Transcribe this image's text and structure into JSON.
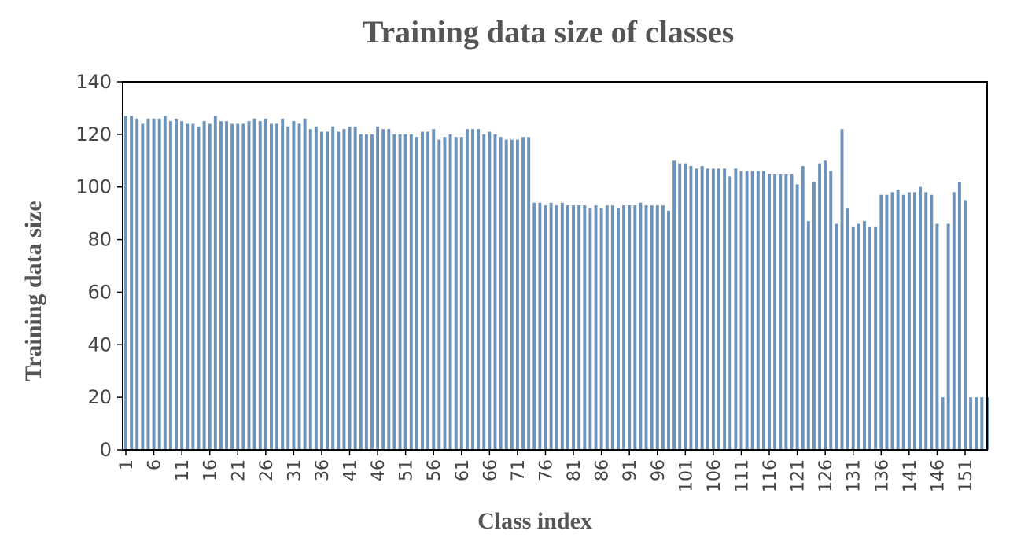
{
  "chart_data": {
    "type": "bar",
    "title": "Training data size of classes",
    "xlabel": "Class index",
    "ylabel": "Training data size",
    "ylim": [
      0,
      140
    ],
    "yticks": [
      0,
      20,
      40,
      60,
      80,
      100,
      120,
      140
    ],
    "xtick_labels": [
      "1",
      "6",
      "11",
      "16",
      "21",
      "26",
      "31",
      "36",
      "41",
      "46",
      "51",
      "56",
      "61",
      "66",
      "71",
      "76",
      "81",
      "86",
      "91",
      "96",
      "101",
      "106",
      "111",
      "116",
      "121",
      "126",
      "131",
      "136",
      "141",
      "146",
      "151"
    ],
    "bar_color": "#6e93bb",
    "grid": false,
    "legend": "none",
    "x": [
      1,
      2,
      3,
      4,
      5,
      6,
      7,
      8,
      9,
      10,
      11,
      12,
      13,
      14,
      15,
      16,
      17,
      18,
      19,
      20,
      21,
      22,
      23,
      24,
      25,
      26,
      27,
      28,
      29,
      30,
      31,
      32,
      33,
      34,
      35,
      36,
      37,
      38,
      39,
      40,
      41,
      42,
      43,
      44,
      45,
      46,
      47,
      48,
      49,
      50,
      51,
      52,
      53,
      54,
      55,
      56,
      57,
      58,
      59,
      60,
      61,
      62,
      63,
      64,
      65,
      66,
      67,
      68,
      69,
      70,
      71,
      72,
      73,
      74,
      75,
      76,
      77,
      78,
      79,
      80,
      81,
      82,
      83,
      84,
      85,
      86,
      87,
      88,
      89,
      90,
      91,
      92,
      93,
      94,
      95,
      96,
      97,
      98,
      99,
      100,
      101,
      102,
      103,
      104,
      105,
      106,
      107,
      108,
      109,
      110,
      111,
      112,
      113,
      114,
      115,
      116,
      117,
      118,
      119,
      120,
      121,
      122,
      123,
      124,
      125,
      126,
      127,
      128,
      129,
      130,
      131,
      132,
      133,
      134,
      135,
      136,
      137,
      138,
      139,
      140,
      141,
      142,
      143,
      144,
      145,
      146,
      147,
      148,
      149,
      150,
      151,
      152,
      153,
      154,
      155
    ],
    "values": [
      127,
      127,
      126,
      124,
      126,
      126,
      126,
      127,
      125,
      126,
      125,
      124,
      124,
      123,
      125,
      124,
      127,
      125,
      125,
      124,
      124,
      124,
      125,
      126,
      125,
      126,
      124,
      124,
      126,
      123,
      125,
      124,
      126,
      122,
      123,
      121,
      121,
      123,
      121,
      122,
      123,
      123,
      120,
      120,
      120,
      123,
      122,
      122,
      120,
      120,
      120,
      120,
      119,
      121,
      121,
      122,
      118,
      119,
      120,
      119,
      119,
      122,
      122,
      122,
      120,
      121,
      120,
      119,
      118,
      118,
      118,
      119,
      119,
      94,
      94,
      93,
      94,
      93,
      94,
      93,
      93,
      93,
      93,
      92,
      93,
      92,
      93,
      93,
      92,
      93,
      93,
      93,
      94,
      93,
      93,
      93,
      93,
      91,
      110,
      109,
      109,
      108,
      107,
      108,
      107,
      107,
      107,
      107,
      104,
      107,
      106,
      106,
      106,
      106,
      106,
      105,
      105,
      105,
      105,
      105,
      101,
      108,
      87,
      102,
      109,
      110,
      106,
      86,
      122,
      92,
      85,
      86,
      87,
      85,
      85,
      97,
      97,
      98,
      99,
      97,
      98,
      98,
      100,
      98,
      97,
      86,
      20,
      86,
      98,
      102,
      95,
      20,
      20,
      20,
      20
    ]
  }
}
